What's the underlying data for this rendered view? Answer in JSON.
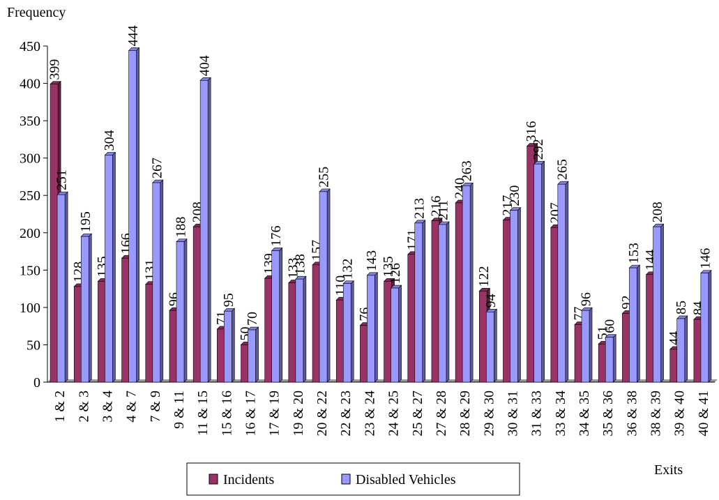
{
  "chart_data": {
    "type": "bar",
    "y_label": "Frequency",
    "x_label": "Exits",
    "categories": [
      "1 & 2",
      "2 & 3",
      "3 & 4",
      "4 & 7",
      "7 & 9",
      "9 & 11",
      "11 & 15",
      "15 & 16",
      "16 & 17",
      "17 & 19",
      "19 & 20",
      "20 & 22",
      "22 & 23",
      "23 & 24",
      "24 & 25",
      "25 & 27",
      "27 & 28",
      "28 & 29",
      "29 & 30",
      "30 & 31",
      "31 & 33",
      "33 & 34",
      "34 & 35",
      "35 & 36",
      "36 & 38",
      "38 & 39",
      "39 & 40",
      "40 & 41"
    ],
    "series": [
      {
        "name": "Incidents",
        "color": "#993366",
        "values": [
          399,
          128,
          135,
          166,
          131,
          96,
          208,
          71,
          50,
          139,
          133,
          157,
          110,
          76,
          135,
          171,
          216,
          240,
          122,
          217,
          316,
          207,
          77,
          51,
          92,
          144,
          44,
          84
        ]
      },
      {
        "name": "Disabled Vehicles",
        "color": "#9999ff",
        "values": [
          251,
          195,
          304,
          444,
          267,
          188,
          404,
          95,
          70,
          176,
          138,
          255,
          132,
          143,
          126,
          213,
          211,
          263,
          94,
          230,
          292,
          265,
          96,
          60,
          153,
          208,
          85,
          146
        ]
      }
    ],
    "ylim": [
      0,
      450
    ],
    "yticks": [
      0,
      50,
      100,
      150,
      200,
      250,
      300,
      350,
      400,
      450
    ],
    "grid": false,
    "legend": "bottom"
  }
}
